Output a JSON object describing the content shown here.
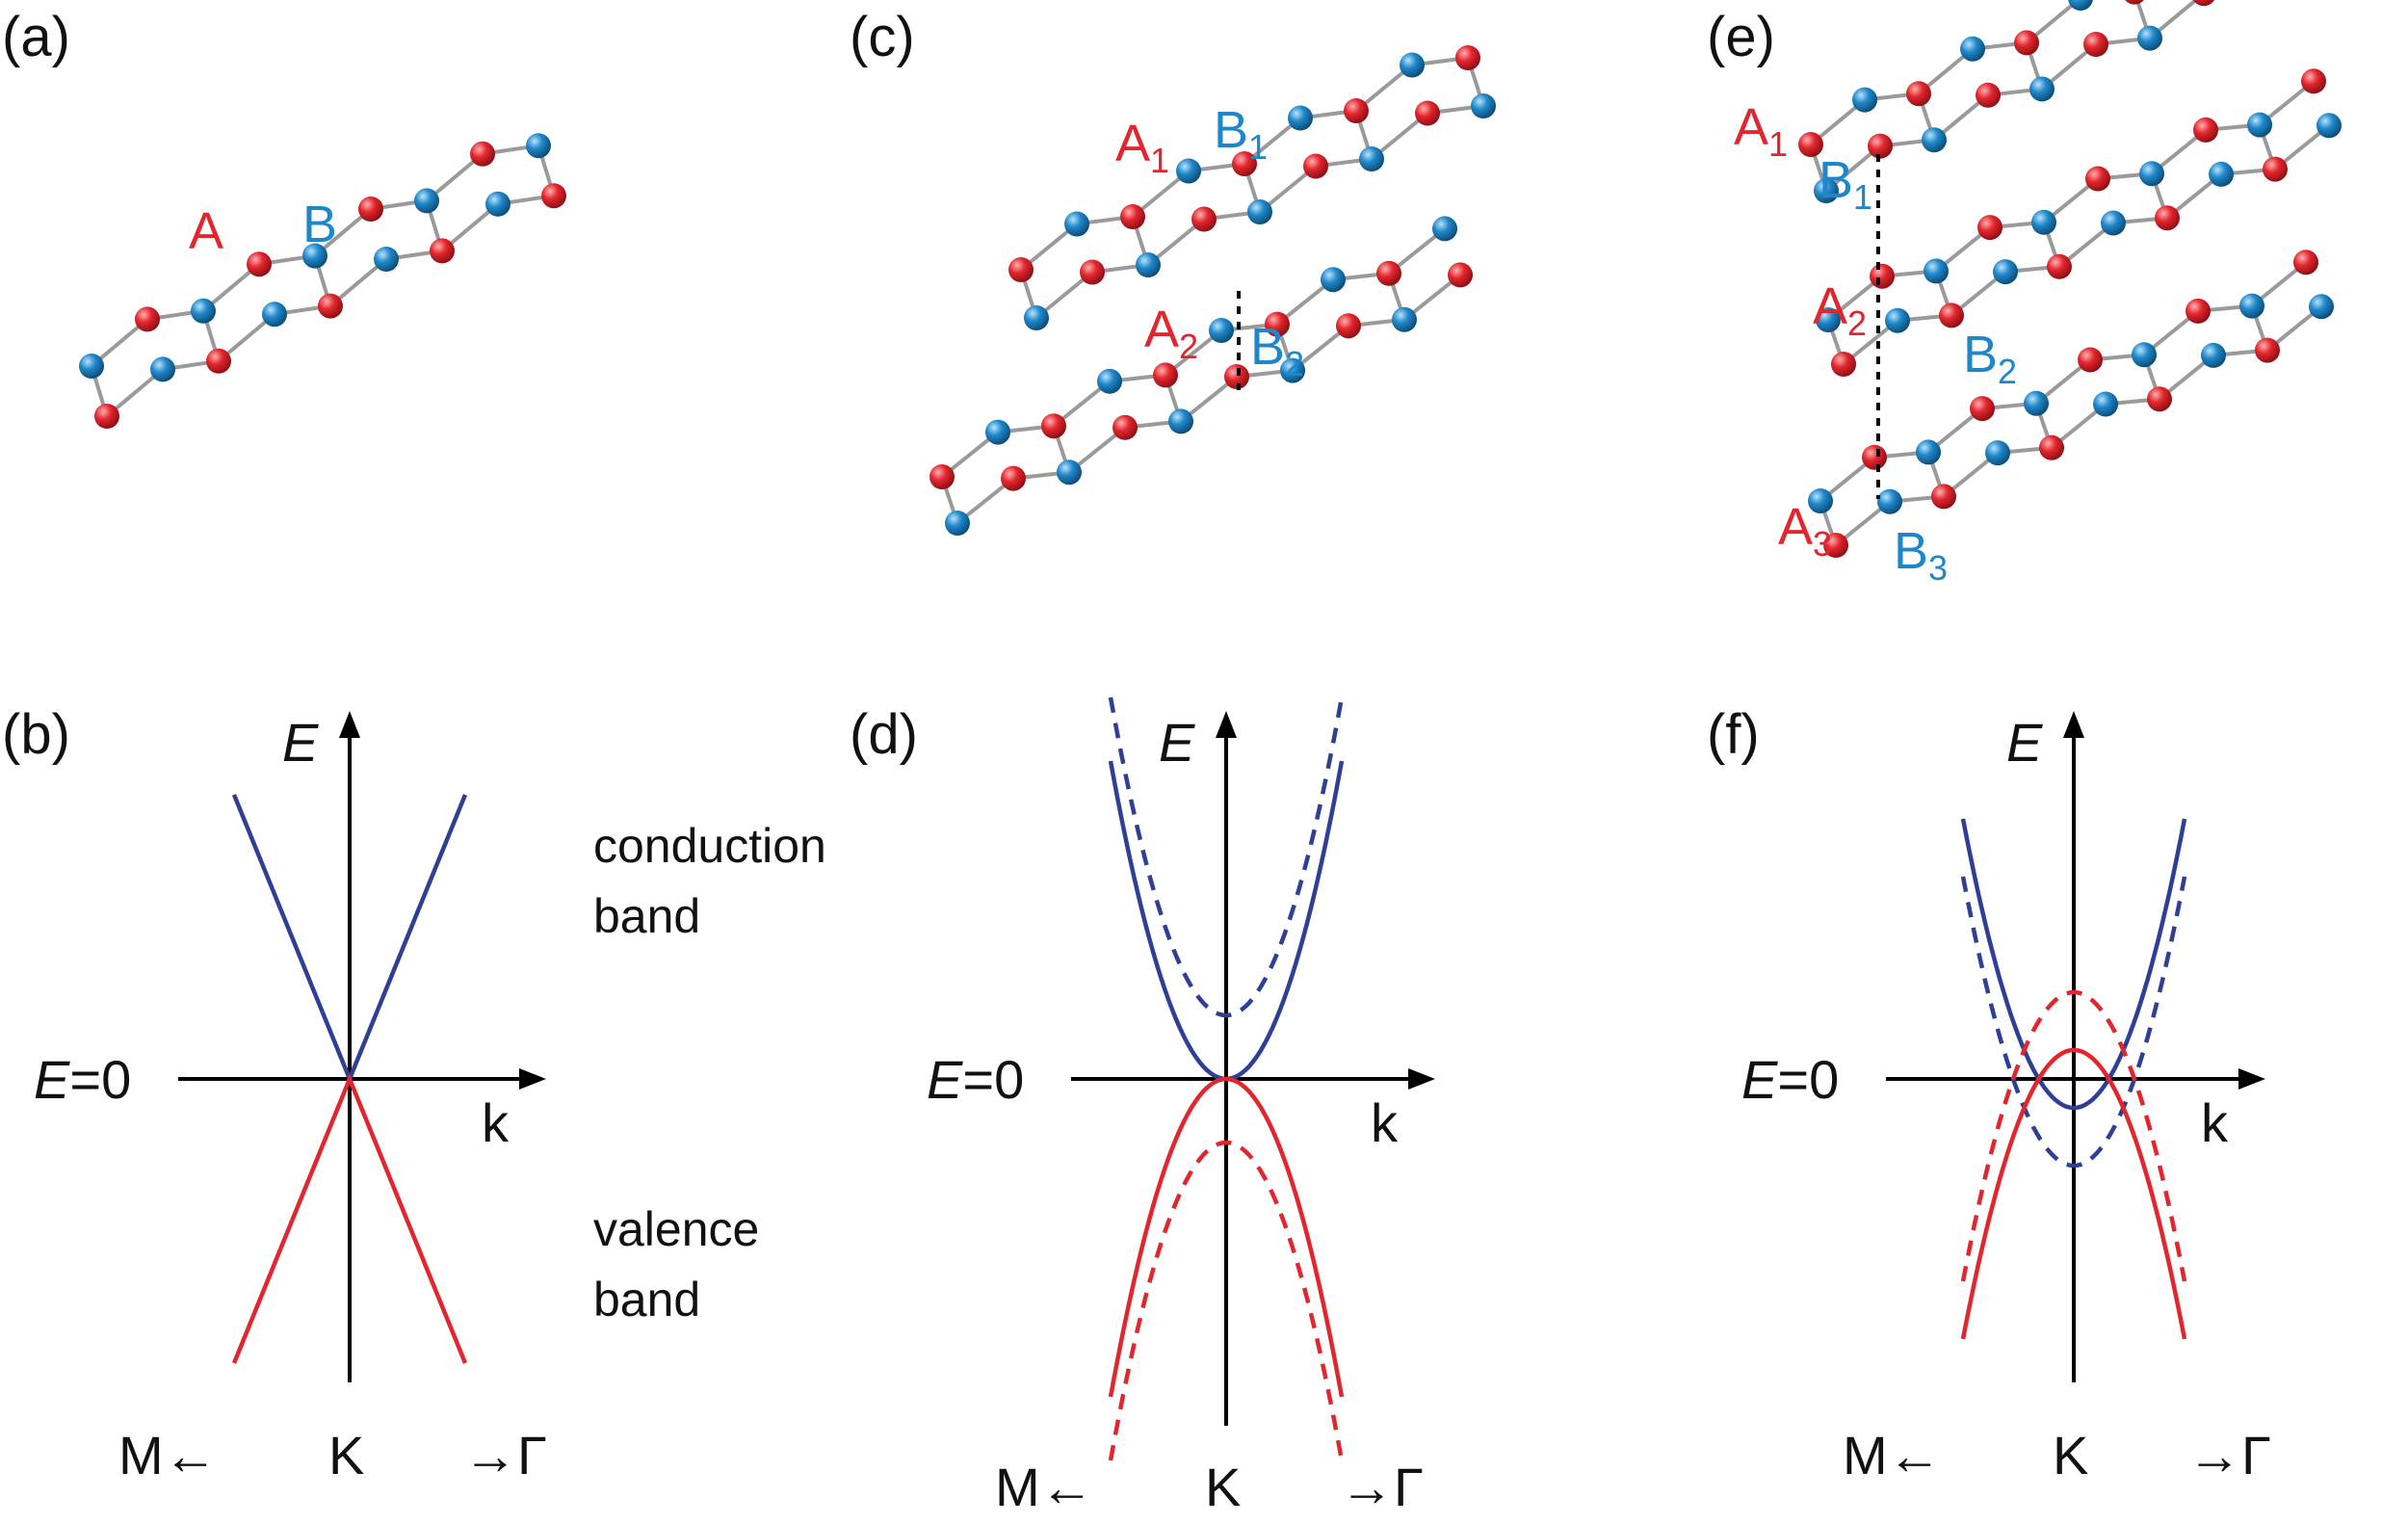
{
  "colors": {
    "A": "#e3262e",
    "B": "#1f87c9",
    "conduction": "#2e3f95",
    "valence": "#e3262e",
    "bond": "#9a9a9a",
    "axis": "#000000"
  },
  "panels": {
    "a": {
      "label": "(a)",
      "atom_A": "A",
      "atom_B": "B"
    },
    "c": {
      "label": "(c)",
      "atoms": [
        {
          "letter": "A",
          "sub": "1",
          "sub_label": "A"
        },
        {
          "letter": "B",
          "sub": "1",
          "sub_label": "B"
        },
        {
          "letter": "A",
          "sub": "2",
          "sub_label": "A"
        },
        {
          "letter": "B",
          "sub": "2",
          "sub_label": "B"
        }
      ]
    },
    "e": {
      "label": "(e)",
      "atoms": [
        {
          "letter": "A",
          "sub": "1"
        },
        {
          "letter": "B",
          "sub": "1"
        },
        {
          "letter": "A",
          "sub": "2"
        },
        {
          "letter": "B",
          "sub": "2"
        },
        {
          "letter": "A",
          "sub": "3"
        },
        {
          "letter": "B",
          "sub": "3"
        }
      ]
    },
    "b": {
      "label": "(b)",
      "e_axis": "E",
      "e_zero_italic": "E",
      "e_zero_rest": "=0",
      "k_axis": "k",
      "ticks": [
        "M←",
        "K",
        "→Γ"
      ]
    },
    "d": {
      "label": "(d)",
      "e_axis": "E",
      "e_zero_italic": "E",
      "e_zero_rest": "=0",
      "k_axis": "k",
      "ticks": [
        "M←",
        "K",
        "→Γ"
      ]
    },
    "f": {
      "label": "(f)",
      "e_axis": "E",
      "e_zero_italic": "E",
      "e_zero_rest": "=0",
      "k_axis": "k",
      "ticks": [
        "M←",
        "K",
        "→Γ"
      ]
    }
  },
  "band_labels": {
    "conduction": [
      "conduction",
      "band"
    ],
    "valence": [
      "valence",
      "band"
    ]
  },
  "bands": {
    "b": [
      {
        "band": "conduction",
        "form": "linear",
        "style": "solid"
      },
      {
        "band": "valence",
        "form": "linear",
        "style": "solid"
      }
    ],
    "d": [
      {
        "band": "conduction",
        "form": "parabolic",
        "offset": 0,
        "style": "solid"
      },
      {
        "band": "conduction",
        "form": "parabolic",
        "offset": 0.2,
        "style": "dashed"
      },
      {
        "band": "valence",
        "form": "parabolic",
        "offset": 0,
        "style": "solid"
      },
      {
        "band": "valence",
        "form": "parabolic",
        "offset": -0.2,
        "style": "dashed"
      }
    ],
    "f": [
      {
        "band": "conduction",
        "form": "parabolic",
        "offset": -0.1,
        "style": "solid"
      },
      {
        "band": "conduction",
        "form": "parabolic",
        "offset": -0.3,
        "style": "dashed"
      },
      {
        "band": "valence",
        "form": "parabolic",
        "offset": 0.1,
        "style": "solid"
      },
      {
        "band": "valence",
        "form": "parabolic",
        "offset": 0.3,
        "style": "dashed"
      }
    ]
  }
}
